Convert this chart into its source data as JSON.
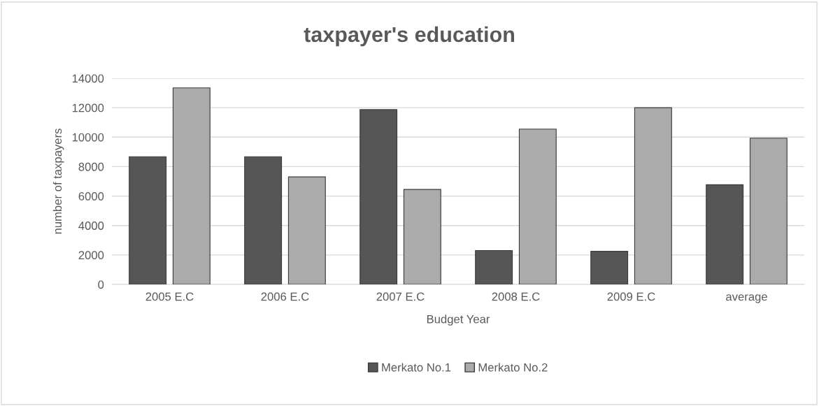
{
  "chart_data": {
    "type": "bar",
    "title": "taxpayer's education",
    "xlabel": "Budget Year",
    "ylabel": "number of taxpayers",
    "categories": [
      "2005 E.C",
      "2006 E.C",
      "2007 E.C",
      "2008 E.C",
      "2009 E.C",
      "average"
    ],
    "series": [
      {
        "name": "Merkato No.1",
        "color": "#565656",
        "values": [
          8670,
          8670,
          11870,
          2300,
          2250,
          6770
        ]
      },
      {
        "name": "Merkato No.2",
        "color": "#ababab",
        "values": [
          13350,
          7300,
          6450,
          10550,
          12000,
          9930
        ]
      }
    ],
    "ylim": [
      0,
      14000
    ],
    "yticks": [
      0,
      2000,
      4000,
      6000,
      8000,
      10000,
      12000,
      14000
    ],
    "grid": "y",
    "legend": "bottom"
  }
}
